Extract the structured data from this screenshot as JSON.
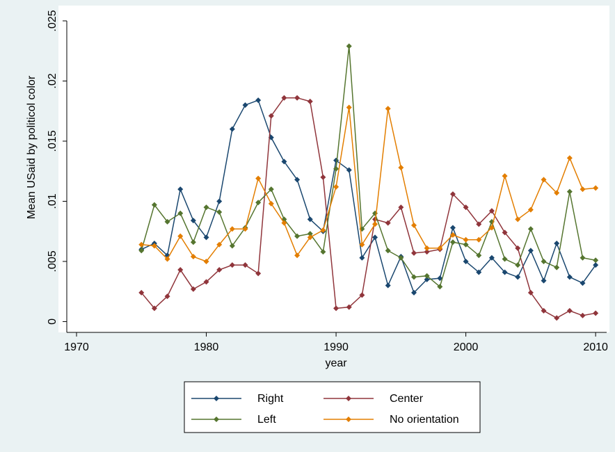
{
  "chart_data": {
    "type": "line",
    "x_label": "year",
    "y_label": "Mean USaid by politicol color",
    "x": [
      1975,
      1976,
      1977,
      1978,
      1979,
      1980,
      1981,
      1982,
      1983,
      1984,
      1985,
      1986,
      1987,
      1988,
      1989,
      1990,
      1991,
      1992,
      1993,
      1994,
      1995,
      1996,
      1997,
      1998,
      1999,
      2000,
      2001,
      2002,
      2003,
      2004,
      2005,
      2006,
      2007,
      2008,
      2009,
      2010
    ],
    "series": [
      {
        "name": "Right",
        "color": "#1a476f",
        "values": [
          0.006,
          0.0065,
          0.0055,
          0.011,
          0.0084,
          0.007,
          0.01,
          0.016,
          0.018,
          0.0184,
          0.0153,
          0.0133,
          0.0118,
          0.0085,
          0.0075,
          0.0134,
          0.0126,
          0.0053,
          0.007,
          0.003,
          0.0054,
          0.0024,
          0.0035,
          0.0036,
          0.0078,
          0.005,
          0.0041,
          0.0053,
          0.0041,
          0.0037,
          0.0059,
          0.0034,
          0.0065,
          0.0037,
          0.0032,
          0.0047
        ]
      },
      {
        "name": "Center",
        "color": "#90353b",
        "values": [
          0.0024,
          0.0011,
          0.0021,
          0.0043,
          0.0027,
          0.0033,
          0.0043,
          0.0047,
          0.0047,
          0.004,
          0.0171,
          0.0186,
          0.0186,
          0.0183,
          0.012,
          0.0011,
          0.0012,
          0.0022,
          0.0085,
          0.0082,
          0.0095,
          0.0057,
          0.0058,
          0.006,
          0.0106,
          0.0095,
          0.0081,
          0.0092,
          0.0074,
          0.0061,
          0.0024,
          0.0009,
          0.0003,
          0.0009,
          0.0005,
          0.0007
        ]
      },
      {
        "name": "Left",
        "color": "#55752f",
        "values": [
          0.0059,
          0.0097,
          0.0083,
          0.009,
          0.0066,
          0.0095,
          0.0091,
          0.0063,
          0.0078,
          0.0099,
          0.011,
          0.0085,
          0.0071,
          0.0073,
          0.0058,
          0.0127,
          0.0229,
          0.0077,
          0.009,
          0.0059,
          0.0053,
          0.0037,
          0.0038,
          0.0029,
          0.0066,
          0.0064,
          0.0055,
          0.0083,
          0.0052,
          0.0047,
          0.0077,
          0.005,
          0.0045,
          0.0108,
          0.0053,
          0.0051
        ]
      },
      {
        "name": "No orientation",
        "color": "#e37e00",
        "values": [
          0.0064,
          0.0063,
          0.0052,
          0.0071,
          0.0054,
          0.005,
          0.0064,
          0.0077,
          0.0077,
          0.0119,
          0.0098,
          0.0082,
          0.0055,
          0.007,
          0.0076,
          0.0112,
          0.0178,
          0.0064,
          0.0081,
          0.0177,
          0.0128,
          0.008,
          0.0061,
          0.0061,
          0.0072,
          0.0068,
          0.0068,
          0.0078,
          0.0121,
          0.0085,
          0.0093,
          0.0118,
          0.0107,
          0.0136,
          0.011,
          0.0111
        ]
      }
    ],
    "xlim": [
      1969.25,
      2010.85
    ],
    "ylim": [
      -0.0009,
      0.025
    ],
    "xticks": [
      1970,
      1980,
      1990,
      2000,
      2010
    ],
    "yticks": [
      0,
      {
        "value": 0.005,
        "label": ".005"
      },
      {
        "value": 0.01,
        "label": ".01"
      },
      {
        "value": 0.015,
        "label": ".015"
      },
      {
        "value": 0.02,
        "label": ".02"
      },
      {
        "value": 0.025,
        "label": ".025"
      }
    ],
    "grid": false
  }
}
